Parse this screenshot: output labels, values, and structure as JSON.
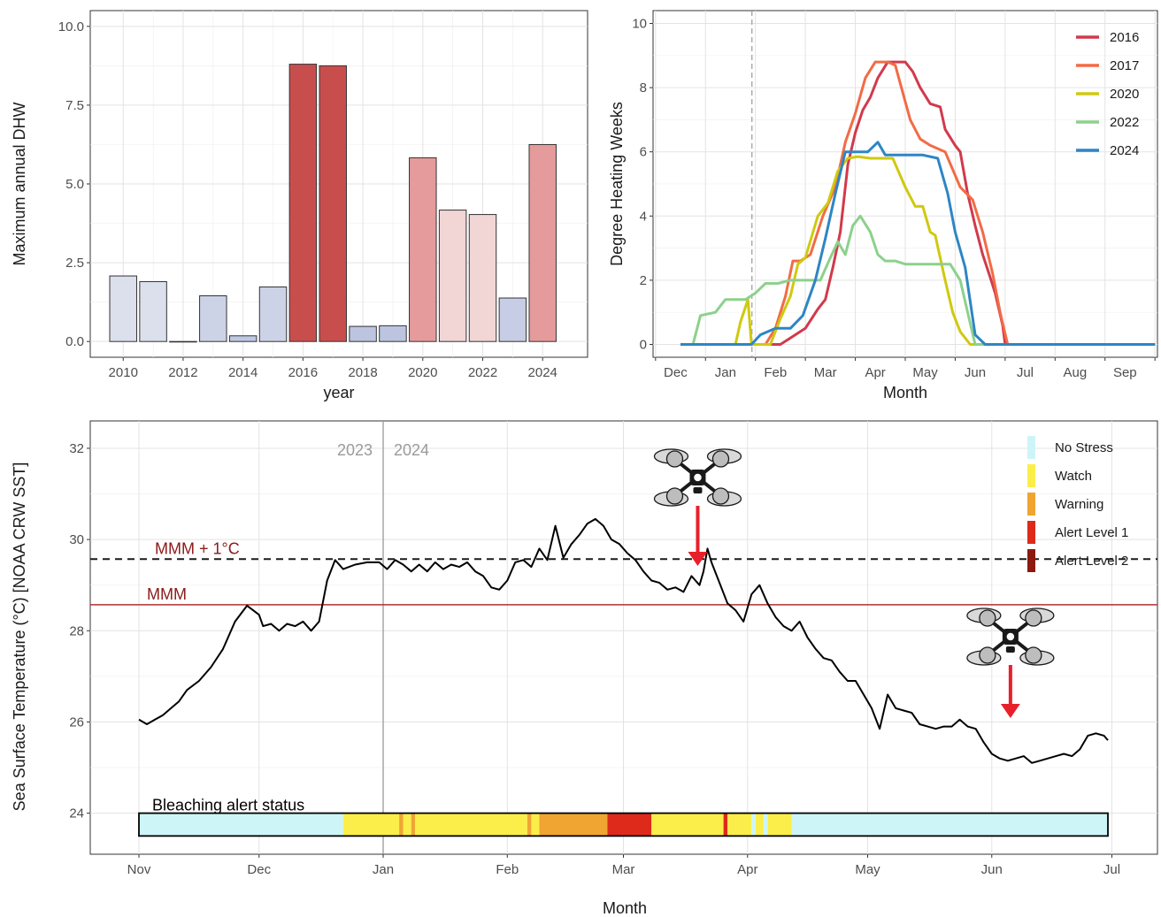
{
  "chart_data": [
    {
      "type": "bar",
      "xlabel": "year",
      "ylabel": "Maximum annual DHW",
      "ylim": [
        -0.5,
        10.5
      ],
      "xlim": [
        2008.9,
        2025.5
      ],
      "y_ticks": [
        "0.0",
        "2.5",
        "5.0",
        "7.5",
        "10.0"
      ],
      "x_ticks": [
        "2010",
        "2012",
        "2014",
        "2016",
        "2018",
        "2020",
        "2022",
        "2024"
      ],
      "grid": true,
      "x": [
        2010,
        2011,
        2012,
        2013,
        2014,
        2015,
        2016,
        2017,
        2018,
        2019,
        2020,
        2021,
        2022,
        2023,
        2024
      ],
      "values": [
        2.08,
        1.9,
        0.0,
        1.45,
        0.18,
        1.73,
        8.8,
        8.75,
        0.48,
        0.5,
        5.83,
        4.17,
        4.03,
        1.38,
        6.25
      ],
      "colors": [
        "#dcdfec",
        "#dcdfec",
        "#dcdfec",
        "#cdd3e7",
        "#bfc8e3",
        "#cdd3e7",
        "#c84e4e",
        "#c84e4e",
        "#bcc4e0",
        "#bcc4e0",
        "#e59b9b",
        "#f2d5d5",
        "#f2d5d5",
        "#c6cde4",
        "#e59b9b"
      ]
    },
    {
      "type": "line",
      "xlabel": "Month",
      "ylabel": "Degree Heating Weeks",
      "ylim": [
        -0.4,
        10.4
      ],
      "xlim": [
        -0.05,
        10.05
      ],
      "y_ticks": [
        "0",
        "2",
        "4",
        "6",
        "8",
        "10"
      ],
      "x_ticks": [
        "Dec",
        "Jan",
        "Feb",
        "Mar",
        "Apr",
        "May",
        "Jun",
        "Jul",
        "Aug",
        "Sep"
      ],
      "grid": true,
      "vline": 1.93,
      "legend_position": "top-right",
      "series": [
        {
          "name": "2016",
          "color": "#d13a4b",
          "x": [
            0.5,
            2.5,
            3.0,
            3.25,
            3.4,
            3.55,
            3.7,
            3.85,
            4.0,
            4.15,
            4.3,
            4.45,
            4.65,
            4.75,
            5.0,
            5.15,
            5.3,
            5.5,
            5.7,
            5.8,
            6.0,
            6.1,
            6.25,
            6.4,
            6.55,
            6.7,
            6.8,
            6.95,
            7.0,
            10.0
          ],
          "y": [
            0,
            0,
            0.5,
            1.1,
            1.4,
            2.4,
            3.5,
            5.6,
            6.6,
            7.3,
            7.7,
            8.3,
            8.8,
            8.8,
            8.8,
            8.5,
            8.0,
            7.5,
            7.4,
            6.7,
            6.2,
            6.0,
            4.7,
            3.7,
            2.8,
            2.1,
            1.6,
            0.6,
            0,
            0
          ]
        },
        {
          "name": "2017",
          "color": "#f26b45",
          "x": [
            0.5,
            2.2,
            2.4,
            2.6,
            2.75,
            2.9,
            3.1,
            3.35,
            3.6,
            3.8,
            4.0,
            4.2,
            4.4,
            4.65,
            4.8,
            5.1,
            5.3,
            5.5,
            5.8,
            6.1,
            6.35,
            6.55,
            6.75,
            6.9,
            7.05,
            10.0
          ],
          "y": [
            0,
            0,
            0.5,
            1.5,
            2.6,
            2.6,
            2.8,
            4.0,
            4.9,
            6.3,
            7.2,
            8.3,
            8.8,
            8.8,
            8.7,
            7.0,
            6.4,
            6.2,
            6.0,
            4.9,
            4.5,
            3.5,
            2.2,
            1.0,
            0,
            0
          ]
        },
        {
          "name": "2020",
          "color": "#cfc910",
          "x": [
            0.5,
            1.6,
            1.7,
            1.85,
            1.92,
            2.3,
            2.5,
            2.7,
            2.85,
            3.0,
            3.25,
            3.45,
            3.65,
            3.85,
            4.05,
            4.3,
            4.5,
            4.75,
            5.0,
            5.2,
            5.35,
            5.5,
            5.6,
            5.8,
            5.95,
            6.1,
            6.3,
            10.0
          ],
          "y": [
            0,
            0,
            0.7,
            1.4,
            0,
            0,
            0.8,
            1.5,
            2.5,
            2.7,
            4.0,
            4.4,
            5.4,
            5.8,
            5.85,
            5.8,
            5.8,
            5.8,
            4.9,
            4.3,
            4.3,
            3.5,
            3.4,
            2.0,
            1.0,
            0.4,
            0,
            0
          ]
        },
        {
          "name": "2022",
          "color": "#8cd18c",
          "x": [
            0.5,
            0.75,
            0.9,
            1.2,
            1.4,
            1.6,
            1.8,
            2.0,
            2.2,
            2.45,
            2.7,
            2.95,
            3.3,
            3.5,
            3.65,
            3.8,
            3.95,
            4.1,
            4.3,
            4.45,
            4.6,
            4.8,
            5.0,
            5.5,
            5.9,
            6.1,
            6.25,
            6.4,
            10.0
          ],
          "y": [
            0,
            0,
            0.9,
            1.0,
            1.4,
            1.4,
            1.4,
            1.6,
            1.9,
            1.9,
            2.0,
            2.0,
            2.0,
            2.7,
            3.2,
            2.8,
            3.7,
            4.0,
            3.5,
            2.8,
            2.6,
            2.6,
            2.5,
            2.5,
            2.5,
            2.0,
            1.0,
            0,
            0
          ]
        },
        {
          "name": "2024",
          "color": "#2d86c4",
          "x": [
            0.5,
            1.92,
            2.1,
            2.4,
            2.7,
            2.95,
            3.2,
            3.4,
            3.6,
            3.8,
            4.0,
            4.25,
            4.45,
            4.6,
            4.75,
            4.9,
            5.1,
            5.35,
            5.65,
            5.85,
            6.0,
            6.2,
            6.4,
            6.6,
            6.8,
            10.0
          ],
          "y": [
            0,
            0,
            0.3,
            0.5,
            0.5,
            0.9,
            2.0,
            3.3,
            4.7,
            6.0,
            6.0,
            6.0,
            6.3,
            5.9,
            5.9,
            5.9,
            5.9,
            5.9,
            5.8,
            4.7,
            3.5,
            2.4,
            0.3,
            0,
            0,
            0
          ]
        }
      ]
    },
    {
      "type": "line",
      "xlabel": "Month",
      "ylabel": "Sea Surface Temperature (°C) [NOAA CRW SST]",
      "ylim": [
        23.1,
        32.6
      ],
      "y_ticks": [
        "24",
        "26",
        "28",
        "30",
        "32"
      ],
      "x_ticks": [
        "Nov",
        "Dec",
        "Jan",
        "Feb",
        "Mar",
        "Apr",
        "May",
        "Jun",
        "Jul"
      ],
      "grid": true,
      "year_divider": {
        "x": 61,
        "left_label": "2023",
        "right_label": "2024"
      },
      "reference_lines": [
        {
          "label": "MMM + 1°C",
          "value": 29.57,
          "style": "dashed",
          "color": "#1a1a1a",
          "label_color": "#8b1a1a"
        },
        {
          "label": "MMM",
          "value": 28.57,
          "style": "solid",
          "color": "#b03030",
          "label_color": "#8b1a1a"
        }
      ],
      "series": [
        {
          "name": "SST",
          "color": "#000000",
          "x_units": "days since Nov 1, 2023",
          "x": [
            0,
            2,
            4,
            6,
            8,
            10,
            12,
            15,
            18,
            21,
            24,
            27,
            30,
            31,
            33,
            35,
            37,
            39,
            41,
            43,
            45,
            47,
            49,
            51,
            54,
            57,
            60,
            62,
            64,
            66,
            68,
            70,
            72,
            74,
            76,
            78,
            80,
            82,
            84,
            86,
            88,
            90,
            92,
            94,
            96,
            98,
            100,
            102,
            104,
            106,
            108,
            110,
            112,
            114,
            116,
            118,
            120,
            122,
            124,
            126,
            128,
            130,
            132,
            134,
            136,
            138,
            140,
            141,
            142,
            143,
            145,
            147,
            149,
            151,
            153,
            155,
            157,
            159,
            161,
            163,
            165,
            167,
            169,
            171,
            173,
            175,
            177,
            179,
            181,
            183,
            185,
            187,
            189,
            191,
            193,
            195,
            197,
            199,
            201,
            203,
            205,
            207,
            209,
            211,
            213,
            215,
            217,
            219,
            221,
            223,
            225,
            227,
            229,
            231,
            233,
            235,
            237,
            239,
            241,
            242
          ],
          "y": [
            26.05,
            25.95,
            26.05,
            26.15,
            26.3,
            26.45,
            26.7,
            26.9,
            27.2,
            27.6,
            28.2,
            28.55,
            28.35,
            28.1,
            28.15,
            28.0,
            28.15,
            28.1,
            28.2,
            28.0,
            28.2,
            29.1,
            29.55,
            29.35,
            29.45,
            29.5,
            29.5,
            29.35,
            29.55,
            29.45,
            29.3,
            29.45,
            29.3,
            29.5,
            29.35,
            29.45,
            29.4,
            29.5,
            29.3,
            29.2,
            28.95,
            28.9,
            29.1,
            29.5,
            29.55,
            29.4,
            29.8,
            29.55,
            30.3,
            29.6,
            29.9,
            30.1,
            30.35,
            30.45,
            30.3,
            30.0,
            29.9,
            29.7,
            29.55,
            29.3,
            29.1,
            29.05,
            28.9,
            28.95,
            28.85,
            29.2,
            29.0,
            29.3,
            29.8,
            29.5,
            29.05,
            28.6,
            28.45,
            28.2,
            28.8,
            29.0,
            28.6,
            28.3,
            28.1,
            28.0,
            28.2,
            27.85,
            27.6,
            27.4,
            27.35,
            27.1,
            26.9,
            26.9,
            26.6,
            26.3,
            25.85,
            26.6,
            26.3,
            26.25,
            26.2,
            25.95,
            25.9,
            25.85,
            25.9,
            25.9,
            26.05,
            25.9,
            25.85,
            25.55,
            25.3,
            25.2,
            25.15,
            25.2,
            25.25,
            25.1,
            25.15,
            25.2,
            25.25,
            25.3,
            25.25,
            25.4,
            25.7,
            25.75,
            25.7,
            25.6
          ]
        }
      ],
      "alert_bar": {
        "label": "Bleaching alert status",
        "segments": [
          {
            "from": 0,
            "to": 51,
            "status": "No Stress"
          },
          {
            "from": 51,
            "to": 65,
            "status": "Watch"
          },
          {
            "from": 65,
            "to": 66,
            "status": "Warning"
          },
          {
            "from": 66,
            "to": 68,
            "status": "Watch"
          },
          {
            "from": 68,
            "to": 69,
            "status": "Warning"
          },
          {
            "from": 69,
            "to": 97,
            "status": "Watch"
          },
          {
            "from": 97,
            "to": 98,
            "status": "Warning"
          },
          {
            "from": 98,
            "to": 100,
            "status": "Watch"
          },
          {
            "from": 100,
            "to": 117,
            "status": "Warning"
          },
          {
            "from": 117,
            "to": 128,
            "status": "Alert Level 1"
          },
          {
            "from": 128,
            "to": 146,
            "status": "Watch"
          },
          {
            "from": 146,
            "to": 147,
            "status": "Alert Level 1"
          },
          {
            "from": 147,
            "to": 153,
            "status": "Watch"
          },
          {
            "from": 153,
            "to": 154,
            "status": "No Stress"
          },
          {
            "from": 154,
            "to": 156,
            "status": "Watch"
          },
          {
            "from": 156,
            "to": 157,
            "status": "No Stress"
          },
          {
            "from": 157,
            "to": 163,
            "status": "Watch"
          },
          {
            "from": 163,
            "to": 242,
            "status": "No Stress"
          }
        ]
      },
      "legend_position": "top-right",
      "legend": [
        {
          "label": "No Stress",
          "color": "#cdf5f7"
        },
        {
          "label": "Watch",
          "color": "#fcee4a"
        },
        {
          "label": "Warning",
          "color": "#f0a532"
        },
        {
          "label": "Alert Level 1",
          "color": "#dd2a1b"
        },
        {
          "label": "Alert Level 2",
          "color": "#8b1a10"
        }
      ],
      "drone_markers": [
        {
          "day": 140,
          "icon": "drone-icon"
        },
        {
          "day": 217,
          "icon": "drone-icon"
        }
      ]
    }
  ]
}
